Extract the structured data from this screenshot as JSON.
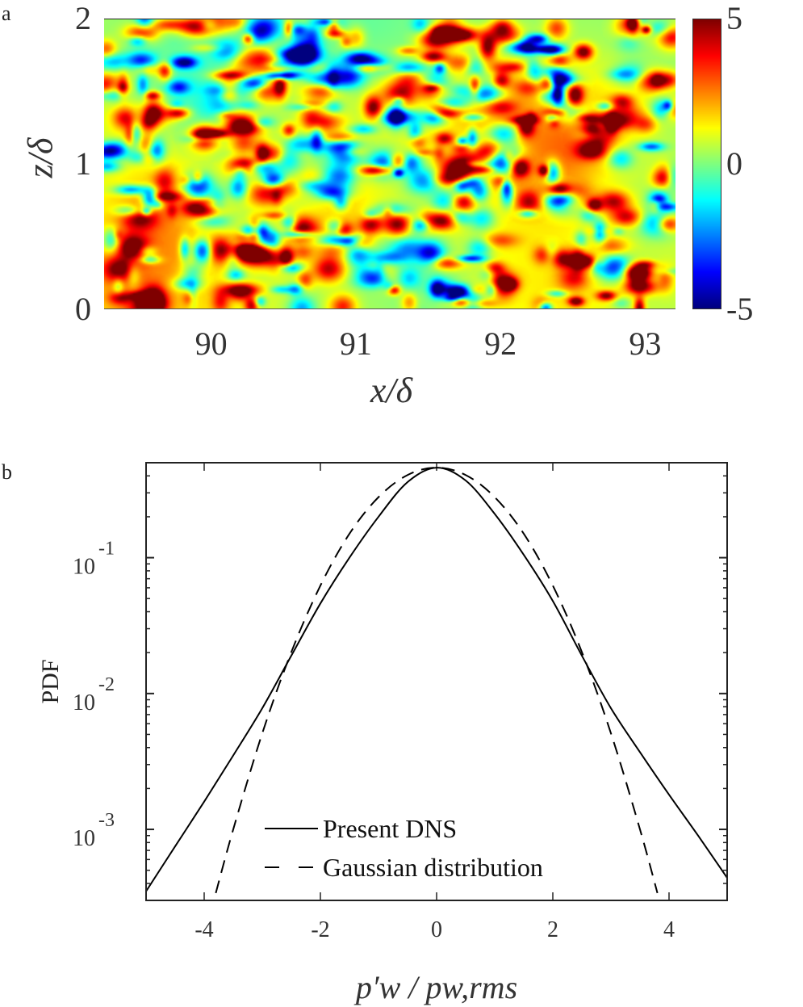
{
  "panels": {
    "a": "a",
    "b": "b"
  },
  "chart_data": [
    {
      "type": "heatmap",
      "panel": "a",
      "xlabel": "x/δ",
      "ylabel": "z/δ",
      "xlim": [
        89.26,
        93.21
      ],
      "ylim": [
        0,
        2
      ],
      "xticks": [
        "90",
        "91",
        "92",
        "93"
      ],
      "xtick_values": [
        90,
        91,
        92,
        93
      ],
      "yticks": [
        "0",
        "1",
        "2"
      ],
      "ytick_values": [
        0,
        1,
        2
      ],
      "colormap": "jet",
      "clim": [
        -5,
        5
      ],
      "colorbar_ticks": [
        "5",
        "0",
        "-5"
      ],
      "colorbar_tick_values": [
        5,
        0,
        -5
      ]
    },
    {
      "type": "line",
      "panel": "b",
      "xlabel": "p′w / pw,rms",
      "ylabel": "PDF",
      "xlim": [
        -5,
        5
      ],
      "ylim": [
        0.0003,
        0.5
      ],
      "yscale": "log",
      "xticks": [
        "-4",
        "-2",
        "0",
        "2",
        "4"
      ],
      "xtick_values": [
        -4,
        -2,
        0,
        2,
        4
      ],
      "yticks": [
        {
          "base": "10",
          "exp": "-1",
          "value": 0.1
        },
        {
          "base": "10",
          "exp": "-2",
          "value": 0.01
        },
        {
          "base": "10",
          "exp": "-3",
          "value": 0.001
        }
      ],
      "legend_position": "bottom-center",
      "series": [
        {
          "name": "Present DNS",
          "style": "solid",
          "color": "#000000",
          "x": [
            -5,
            -4.5,
            -4,
            -3.5,
            -3,
            -2.5,
            -2,
            -1.5,
            -1,
            -0.5,
            0,
            0.5,
            1,
            1.5,
            2,
            2.5,
            3,
            3.5,
            4,
            4.5,
            5
          ],
          "y": [
            0.00035,
            0.00075,
            0.0016,
            0.0035,
            0.0078,
            0.019,
            0.046,
            0.1,
            0.2,
            0.36,
            0.46,
            0.37,
            0.21,
            0.105,
            0.048,
            0.019,
            0.0078,
            0.0037,
            0.0018,
            0.0009,
            0.00044
          ]
        },
        {
          "name": "Gaussian distribution",
          "style": "dashed",
          "color": "#000000",
          "x": [
            -3.8,
            -3.5,
            -3,
            -2.5,
            -2,
            -1.5,
            -1,
            -0.5,
            0,
            0.5,
            1,
            1.5,
            2,
            2.5,
            3,
            3.5,
            3.8
          ],
          "y": [
            0.00034,
            0.001,
            0.0051,
            0.0202,
            0.0623,
            0.15,
            0.279,
            0.406,
            0.46,
            0.406,
            0.279,
            0.15,
            0.0623,
            0.0202,
            0.0051,
            0.001,
            0.00034
          ]
        }
      ]
    }
  ]
}
